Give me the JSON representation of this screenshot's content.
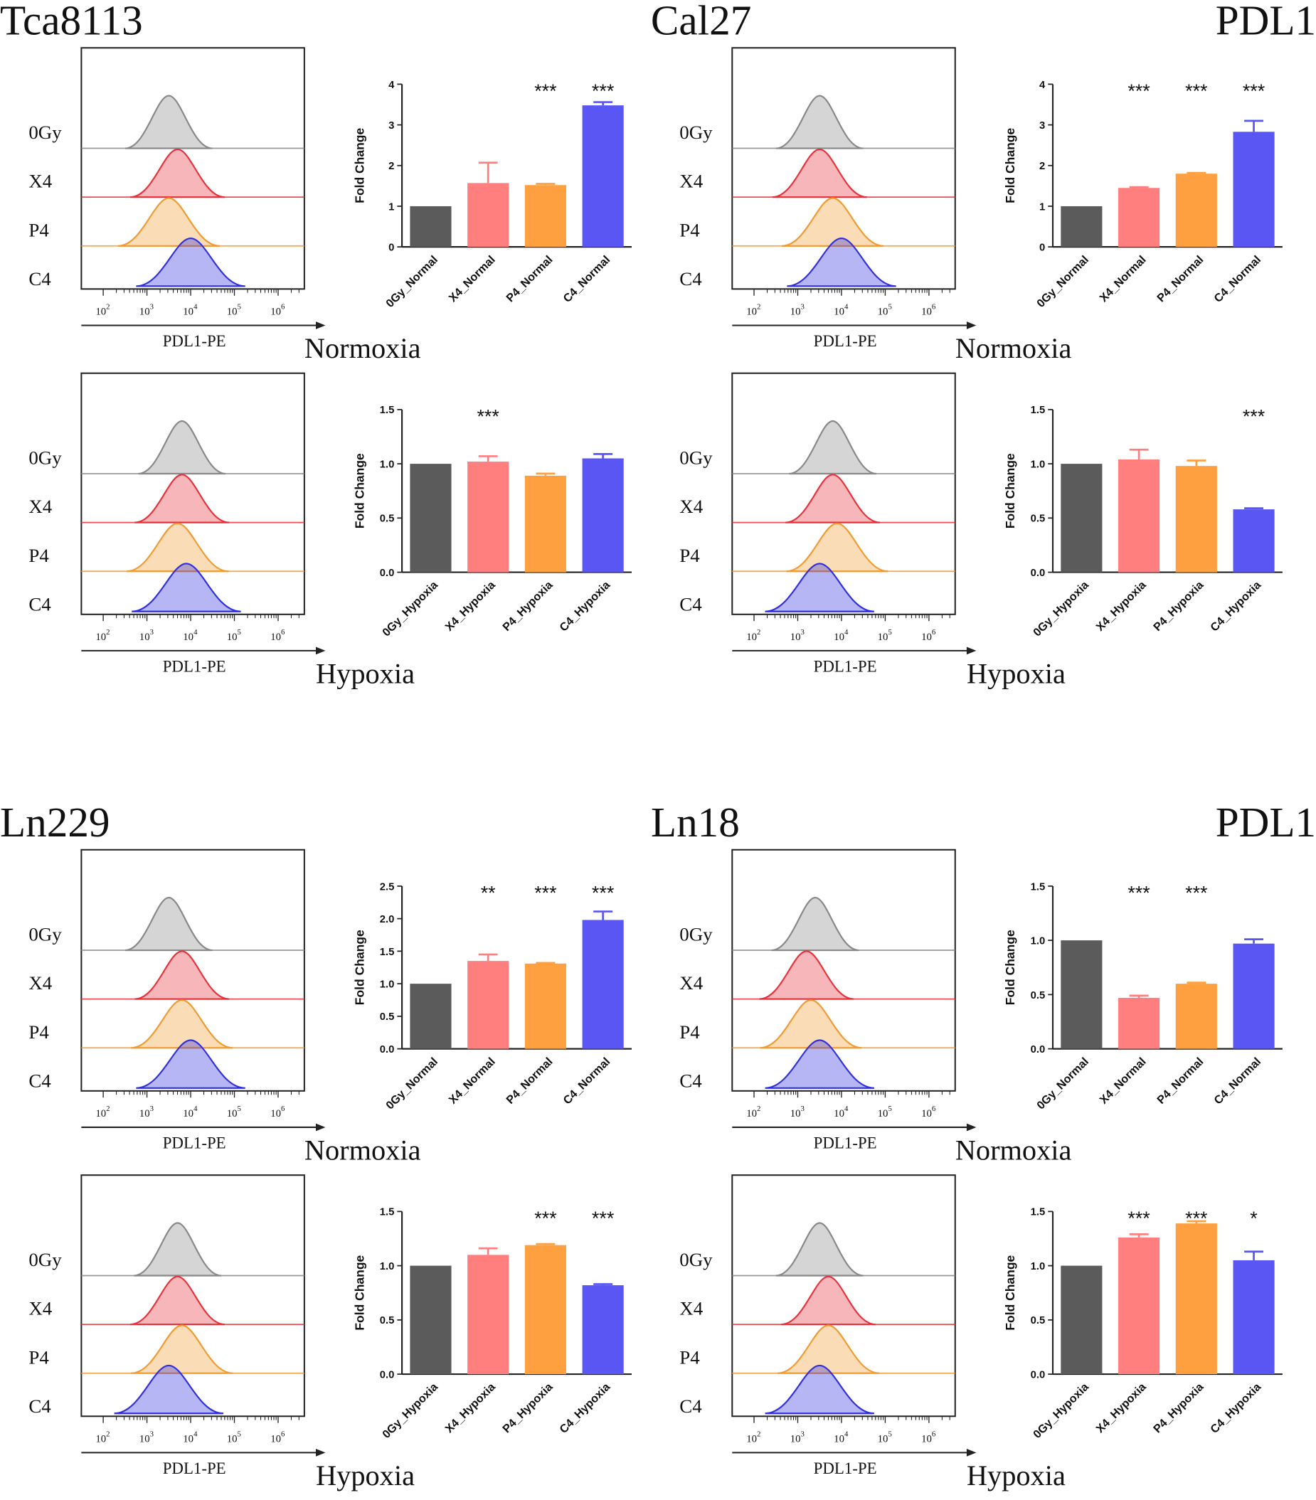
{
  "figure": {
    "marker_label": "PDL1",
    "xaxis_label": "PDL1-PE",
    "row_labels": [
      "0Gy",
      "X4",
      "P4",
      "C4"
    ],
    "decade_labels": [
      "2",
      "3",
      "4",
      "5",
      "6"
    ],
    "colors": {
      "0Gy": "#5b5b5b",
      "X4": "#ff7f7f",
      "P4": "#ffa040",
      "C4": "#5a56f4",
      "hist_0Gy": "#888888",
      "hist_X4": "#e8303a",
      "hist_P4": "#f09a30",
      "hist_C4": "#2f2fe0"
    }
  },
  "chart_data": [
    {
      "cell_line": "Tca8113",
      "condition": "Normoxia",
      "type": "bar",
      "ylabel": "Fold Change",
      "categories": [
        "0Gy_Normal",
        "X4_Normal",
        "P4_Normal",
        "C4_Normal"
      ],
      "values": [
        1.0,
        1.57,
        1.52,
        3.48
      ],
      "errors": [
        0,
        0.5,
        0.03,
        0.08
      ],
      "significance": [
        "",
        "",
        "***",
        "***"
      ],
      "ylim": [
        0,
        4
      ],
      "yticks": [
        "0",
        "1",
        "2",
        "3",
        "4"
      ],
      "ytick_values": [
        0,
        1,
        2,
        3,
        4
      ],
      "histogram_peaks": {
        "0Gy": 3.5,
        "X4": 3.7,
        "P4": 3.5,
        "C4": 4.0
      }
    },
    {
      "cell_line": "Tca8113",
      "condition": "Hypoxia",
      "type": "bar",
      "ylabel": "Fold Change",
      "categories": [
        "0Gy_Hypoxia",
        "X4_Hypoxia",
        "P4_Hypoxia",
        "C4_Hypoxia"
      ],
      "values": [
        1.0,
        1.02,
        0.89,
        1.05
      ],
      "errors": [
        0,
        0.05,
        0.02,
        0.04
      ],
      "significance": [
        "",
        "***",
        "",
        ""
      ],
      "ylim": [
        0,
        1.5
      ],
      "yticks": [
        "0.0",
        "0.5",
        "1.0",
        "1.5"
      ],
      "ytick_values": [
        0,
        0.5,
        1.0,
        1.5
      ],
      "histogram_peaks": {
        "0Gy": 3.8,
        "X4": 3.8,
        "P4": 3.7,
        "C4": 3.9
      }
    },
    {
      "cell_line": "Cal27",
      "condition": "Normoxia",
      "type": "bar",
      "ylabel": "Fold Change",
      "categories": [
        "0Gy_Normal",
        "X4_Normal",
        "P4_Normal",
        "C4_Normal"
      ],
      "values": [
        1.0,
        1.45,
        1.8,
        2.83
      ],
      "errors": [
        0,
        0.02,
        0.02,
        0.27
      ],
      "significance": [
        "",
        "***",
        "***",
        "***"
      ],
      "ylim": [
        0,
        4
      ],
      "yticks": [
        "0",
        "1",
        "2",
        "3",
        "4"
      ],
      "ytick_values": [
        0,
        1,
        2,
        3,
        4
      ],
      "histogram_peaks": {
        "0Gy": 3.5,
        "X4": 3.5,
        "P4": 3.8,
        "C4": 4.0
      }
    },
    {
      "cell_line": "Cal27",
      "condition": "Hypoxia",
      "type": "bar",
      "ylabel": "Fold Change",
      "categories": [
        "0Gy_Hypoxia",
        "X4_Hypoxia",
        "P4_Hypoxia",
        "C4_Hypoxia"
      ],
      "values": [
        1.0,
        1.04,
        0.98,
        0.58
      ],
      "errors": [
        0,
        0.09,
        0.05,
        0.01
      ],
      "significance": [
        "",
        "",
        "",
        "***"
      ],
      "ylim": [
        0,
        1.5
      ],
      "yticks": [
        "0.0",
        "0.5",
        "1.0",
        "1.5"
      ],
      "ytick_values": [
        0,
        0.5,
        1.0,
        1.5
      ],
      "histogram_peaks": {
        "0Gy": 3.8,
        "X4": 3.8,
        "P4": 3.9,
        "C4": 3.5
      }
    },
    {
      "cell_line": "Ln229",
      "condition": "Normoxia",
      "type": "bar",
      "ylabel": "Fold Change",
      "categories": [
        "0Gy_Normal",
        "X4_Normal",
        "P4_Normal",
        "C4_Normal"
      ],
      "values": [
        1.0,
        1.35,
        1.31,
        1.98
      ],
      "errors": [
        0,
        0.1,
        0.01,
        0.13
      ],
      "significance": [
        "",
        "**",
        "***",
        "***"
      ],
      "ylim": [
        0,
        2.5
      ],
      "yticks": [
        "0.0",
        "0.5",
        "1.0",
        "1.5",
        "2.0",
        "2.5"
      ],
      "ytick_values": [
        0,
        0.5,
        1.0,
        1.5,
        2.0,
        2.5
      ],
      "histogram_peaks": {
        "0Gy": 3.5,
        "X4": 3.8,
        "P4": 3.8,
        "C4": 4.0
      }
    },
    {
      "cell_line": "Ln229",
      "condition": "Hypoxia",
      "type": "bar",
      "ylabel": "Fold Change",
      "categories": [
        "0Gy_Hypoxia",
        "X4_Hypoxia",
        "P4_Hypoxia",
        "C4_Hypoxia"
      ],
      "values": [
        1.0,
        1.1,
        1.19,
        0.82
      ],
      "errors": [
        0,
        0.06,
        0.01,
        0.01
      ],
      "significance": [
        "",
        "",
        "***",
        "***"
      ],
      "ylim": [
        0,
        1.5
      ],
      "yticks": [
        "0.0",
        "0.5",
        "1.0",
        "1.5"
      ],
      "ytick_values": [
        0,
        0.5,
        1.0,
        1.5
      ],
      "histogram_peaks": {
        "0Gy": 3.7,
        "X4": 3.7,
        "P4": 3.8,
        "C4": 3.5
      }
    },
    {
      "cell_line": "Ln18",
      "condition": "Normoxia",
      "type": "bar",
      "ylabel": "Fold Change",
      "categories": [
        "0Gy_Normal",
        "X4_Normal",
        "P4_Normal",
        "C4_Normal"
      ],
      "values": [
        1.0,
        0.47,
        0.6,
        0.97
      ],
      "errors": [
        0,
        0.02,
        0.01,
        0.04
      ],
      "significance": [
        "",
        "***",
        "***",
        ""
      ],
      "ylim": [
        0,
        1.5
      ],
      "yticks": [
        "0.0",
        "0.5",
        "1.0",
        "1.5"
      ],
      "ytick_values": [
        0,
        0.5,
        1.0,
        1.5
      ],
      "histogram_peaks": {
        "0Gy": 3.4,
        "X4": 3.2,
        "P4": 3.3,
        "C4": 3.5
      }
    },
    {
      "cell_line": "Ln18",
      "condition": "Hypoxia",
      "type": "bar",
      "ylabel": "Fold Change",
      "categories": [
        "0Gy_Hypoxia",
        "X4_Hypoxia",
        "P4_Hypoxia",
        "C4_Hypoxia"
      ],
      "values": [
        1.0,
        1.26,
        1.39,
        1.05
      ],
      "errors": [
        0,
        0.03,
        0.02,
        0.08
      ],
      "significance": [
        "",
        "***",
        "***",
        "*"
      ],
      "ylim": [
        0,
        1.5
      ],
      "yticks": [
        "0.0",
        "0.5",
        "1.0",
        "1.5"
      ],
      "ytick_values": [
        0,
        0.5,
        1.0,
        1.5
      ],
      "histogram_peaks": {
        "0Gy": 3.5,
        "X4": 3.7,
        "P4": 3.7,
        "C4": 3.5
      }
    }
  ]
}
